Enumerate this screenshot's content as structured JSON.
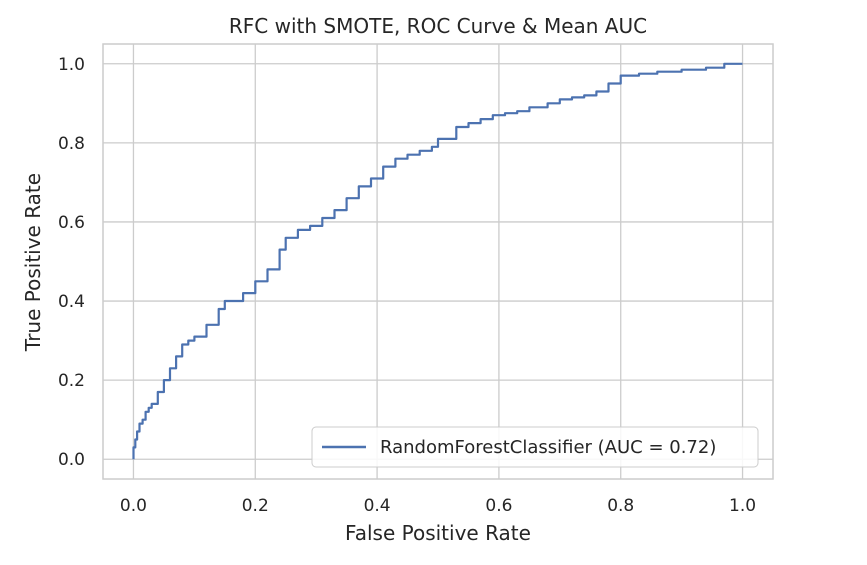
{
  "chart_data": {
    "type": "line",
    "title": "RFC with SMOTE, ROC Curve & Mean AUC",
    "xlabel": "False Positive Rate",
    "ylabel": "True Positive Rate",
    "xlim": [
      -0.05,
      1.05
    ],
    "ylim": [
      -0.05,
      1.05
    ],
    "xticks": [
      0.0,
      0.2,
      0.4,
      0.6,
      0.8,
      1.0
    ],
    "yticks": [
      0.0,
      0.2,
      0.4,
      0.6,
      0.8,
      1.0
    ],
    "xtick_labels": [
      "0.0",
      "0.2",
      "0.4",
      "0.6",
      "0.8",
      "1.0"
    ],
    "ytick_labels": [
      "0.0",
      "0.2",
      "0.4",
      "0.6",
      "0.8",
      "1.0"
    ],
    "grid": true,
    "legend_position": "lower-right",
    "colors": {
      "line": "#4c72b0",
      "grid": "#cccccc",
      "frame": "#cccccc",
      "text": "#262626"
    },
    "series": [
      {
        "name": "RandomForestClassifier (AUC = 0.72)",
        "x": [
          0.0,
          0.0,
          0.003,
          0.006,
          0.01,
          0.015,
          0.02,
          0.025,
          0.03,
          0.04,
          0.05,
          0.06,
          0.07,
          0.08,
          0.09,
          0.1,
          0.12,
          0.14,
          0.15,
          0.18,
          0.2,
          0.22,
          0.24,
          0.25,
          0.27,
          0.29,
          0.31,
          0.33,
          0.35,
          0.37,
          0.39,
          0.41,
          0.43,
          0.45,
          0.47,
          0.49,
          0.5,
          0.53,
          0.55,
          0.57,
          0.59,
          0.61,
          0.63,
          0.65,
          0.68,
          0.7,
          0.72,
          0.74,
          0.76,
          0.78,
          0.8,
          0.83,
          0.86,
          0.9,
          0.94,
          0.97,
          1.0
        ],
        "y": [
          0.0,
          0.03,
          0.05,
          0.07,
          0.09,
          0.1,
          0.12,
          0.13,
          0.14,
          0.17,
          0.2,
          0.23,
          0.26,
          0.29,
          0.3,
          0.31,
          0.34,
          0.38,
          0.4,
          0.42,
          0.45,
          0.48,
          0.53,
          0.56,
          0.58,
          0.59,
          0.61,
          0.63,
          0.66,
          0.69,
          0.71,
          0.74,
          0.76,
          0.77,
          0.78,
          0.79,
          0.81,
          0.84,
          0.85,
          0.86,
          0.87,
          0.875,
          0.88,
          0.89,
          0.9,
          0.91,
          0.915,
          0.92,
          0.93,
          0.95,
          0.97,
          0.975,
          0.98,
          0.985,
          0.99,
          1.0,
          1.0
        ]
      }
    ]
  }
}
